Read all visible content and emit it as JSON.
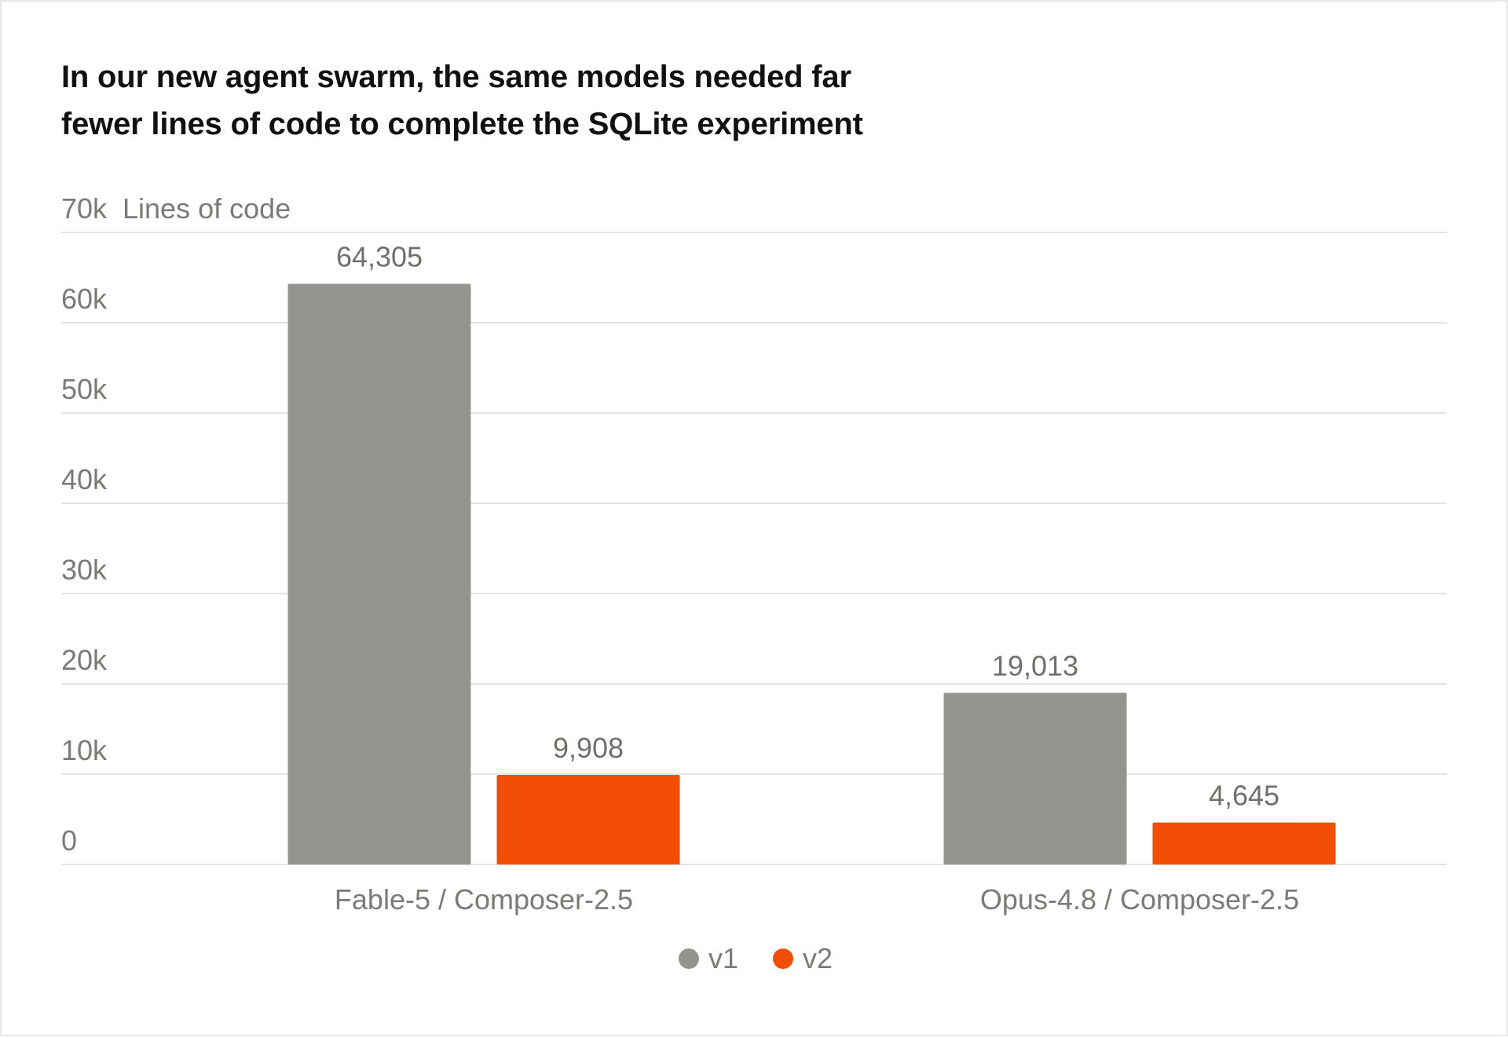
{
  "colors": {
    "v1": "#93938f",
    "v2": "#f24e06",
    "grid": "#e3e3e3",
    "axis_text": "#7a7a76"
  },
  "chart_data": {
    "type": "bar",
    "title_lines": [
      "In our new agent swarm, the same models needed far",
      "fewer lines of code to complete the SQLite experiment"
    ],
    "ylabel": "Lines of code",
    "xlabel": "",
    "ylim": [
      0,
      70000
    ],
    "yticks": [
      0,
      10000,
      20000,
      30000,
      40000,
      50000,
      60000,
      70000
    ],
    "ytick_labels": [
      "0",
      "10k",
      "20k",
      "30k",
      "40k",
      "50k",
      "60k",
      "70k"
    ],
    "categories": [
      "Fable-5 / Composer-2.5",
      "Opus-4.8 / Composer-2.5"
    ],
    "series": [
      {
        "name": "v1",
        "values": [
          64305,
          19013
        ],
        "labels": [
          "64,305",
          "19,013"
        ]
      },
      {
        "name": "v2",
        "values": [
          9908,
          4645
        ],
        "labels": [
          "9,908",
          "4,645"
        ]
      }
    ],
    "grid": true,
    "legend_position": "bottom-center"
  }
}
